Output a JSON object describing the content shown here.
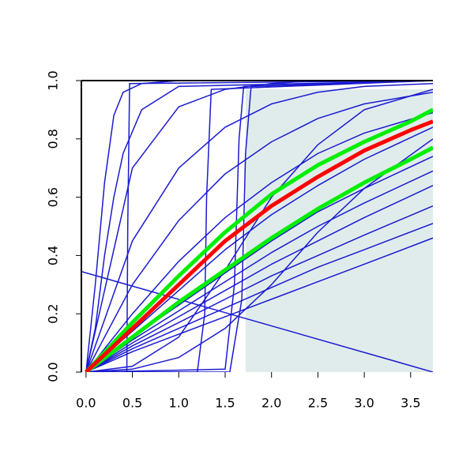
{
  "chart_data": {
    "type": "line",
    "xlim": [
      -0.05,
      3.74
    ],
    "ylim": [
      0,
      1
    ],
    "xticks": [
      {
        "value": 0,
        "label": "0.0"
      },
      0.5,
      {
        "value": 1,
        "label": "1.0"
      },
      1.5,
      {
        "value": 2,
        "label": "2.0"
      },
      2.5,
      {
        "value": 3,
        "label": "3.0"
      },
      3.5
    ],
    "yticks": [
      {
        "value": 0,
        "label": "0.0"
      },
      0.2,
      0.4,
      0.6,
      0.8,
      {
        "value": 1,
        "label": "1.0"
      }
    ],
    "shade": {
      "xlim": [
        1.72,
        3.74
      ],
      "ylim": [
        0,
        0.97
      ],
      "color": "#e0ecec"
    },
    "series": [
      {
        "color": "#1a1ad0",
        "width": 1.5,
        "x": [
          0,
          0.5,
          1,
          1.5,
          2,
          2.5,
          3,
          3.74
        ],
        "values": [
          0,
          0.14,
          0.28,
          0.42,
          0.54,
          0.64,
          0.73,
          0.84
        ]
      },
      {
        "color": "#1a1ad0",
        "width": 1.5,
        "x": [
          0,
          0.5,
          1,
          1.5,
          2,
          2.5,
          3,
          3.74
        ],
        "values": [
          0,
          0.12,
          0.23,
          0.34,
          0.45,
          0.55,
          0.63,
          0.74
        ]
      },
      {
        "color": "#1a1ad0",
        "width": 1.5,
        "x": [
          0,
          0.5,
          1,
          1.5,
          2,
          2.5,
          3,
          3.74
        ],
        "values": [
          0,
          0.11,
          0.21,
          0.31,
          0.41,
          0.5,
          0.58,
          0.69
        ]
      },
      {
        "color": "#1a1ad0",
        "width": 1.5,
        "x": [
          0,
          0.5,
          1,
          1.5,
          2,
          2.5,
          3,
          3.74
        ],
        "values": [
          0,
          0.1,
          0.19,
          0.28,
          0.37,
          0.45,
          0.53,
          0.64
        ]
      },
      {
        "color": "#1a1ad0",
        "width": 1.5,
        "x": [
          0,
          0.5,
          1,
          1.5,
          2,
          2.5,
          3,
          3.74
        ],
        "values": [
          0,
          0.09,
          0.17,
          0.25,
          0.33,
          0.4,
          0.47,
          0.57
        ]
      },
      {
        "color": "#1a1ad0",
        "width": 1.5,
        "x": [
          0,
          0.5,
          1,
          1.5,
          2,
          2.5,
          3,
          3.74
        ],
        "values": [
          0,
          0.08,
          0.15,
          0.22,
          0.29,
          0.36,
          0.42,
          0.51
        ]
      },
      {
        "color": "#1a1ad0",
        "width": 1.5,
        "x": [
          0,
          0.5,
          1,
          1.5,
          2,
          2.5,
          3,
          3.74
        ],
        "values": [
          0,
          0.07,
          0.13,
          0.19,
          0.25,
          0.31,
          0.37,
          0.46
        ]
      },
      {
        "color": "#1a1ad0",
        "width": 1.5,
        "x": [
          0,
          0.5,
          1,
          1.5,
          2,
          2.5,
          3,
          3.74
        ],
        "values": [
          0,
          0.2,
          0.38,
          0.53,
          0.65,
          0.75,
          0.82,
          0.89
        ]
      },
      {
        "color": "#1a1ad0",
        "width": 1.5,
        "x": [
          0,
          0.5,
          1,
          1.5,
          2,
          2.5,
          3,
          3.74
        ],
        "values": [
          0,
          0.3,
          0.52,
          0.68,
          0.79,
          0.87,
          0.92,
          0.96
        ]
      },
      {
        "color": "#1a1ad0",
        "width": 1.5,
        "x": [
          0,
          0.5,
          1,
          1.5,
          2,
          2.5,
          3,
          3.74
        ],
        "values": [
          0,
          0.45,
          0.7,
          0.84,
          0.92,
          0.96,
          0.98,
          0.99
        ]
      },
      {
        "color": "#1a1ad0",
        "width": 1.5,
        "x": [
          0,
          0.5,
          1,
          1.5,
          2,
          2.5,
          3,
          3.74
        ],
        "values": [
          0,
          0.7,
          0.91,
          0.97,
          0.99,
          1,
          1,
          1
        ]
      },
      {
        "color": "#1a1ad0",
        "width": 1.5,
        "x": [
          0,
          0.1,
          0.2,
          0.3,
          0.4,
          0.6,
          1,
          3.74
        ],
        "values": [
          0,
          0.3,
          0.65,
          0.88,
          0.96,
          0.99,
          1,
          1
        ]
      },
      {
        "color": "#1a1ad0",
        "width": 1.5,
        "x": [
          0,
          0.1,
          0.2,
          0.3,
          0.4,
          0.6,
          1,
          3.74
        ],
        "values": [
          0,
          0.15,
          0.4,
          0.6,
          0.75,
          0.9,
          0.98,
          1
        ]
      },
      {
        "color": "#1a1ad0",
        "width": 1.5,
        "x": [
          0,
          0.5,
          1,
          1.5,
          2,
          2.5,
          3,
          3.74
        ],
        "values": [
          0,
          0.02,
          0.12,
          0.35,
          0.6,
          0.78,
          0.9,
          0.97
        ]
      },
      {
        "color": "#1a1ad0",
        "width": 1.5,
        "x": [
          0,
          0.5,
          1,
          1.5,
          2,
          2.5,
          3,
          3.74
        ],
        "values": [
          0,
          0.01,
          0.05,
          0.15,
          0.3,
          0.48,
          0.63,
          0.8
        ]
      },
      {
        "color": "#1a1ad0",
        "width": 1.5,
        "x": [
          0,
          0.44,
          0.45,
          0.47,
          3.74
        ],
        "values": [
          0,
          0,
          0.5,
          0.99,
          1
        ]
      },
      {
        "color": "#1a1ad0",
        "width": 1.5,
        "x": [
          0,
          1.2,
          1.28,
          1.3,
          1.35,
          3.74
        ],
        "values": [
          0,
          0,
          0.2,
          0.6,
          0.97,
          1
        ]
      },
      {
        "color": "#1a1ad0",
        "width": 1.5,
        "x": [
          0,
          1.5,
          1.6,
          1.65,
          1.7,
          3.74
        ],
        "values": [
          0,
          0.01,
          0.3,
          0.8,
          0.98,
          1
        ]
      },
      {
        "color": "#1a1ad0",
        "width": 1.5,
        "x": [
          0,
          1.55,
          1.68,
          1.72,
          1.78,
          3.74
        ],
        "values": [
          0,
          0,
          0.25,
          0.75,
          0.98,
          1
        ]
      },
      {
        "color": "#1a1ad0",
        "width": 1.5,
        "x": [
          -0.05,
          3.74
        ],
        "values": [
          0.345,
          0
        ]
      },
      {
        "color": "#00ee00",
        "width": 5,
        "x": [
          0,
          0.5,
          1,
          1.5,
          2,
          2.5,
          3,
          3.5,
          3.74
        ],
        "values": [
          0,
          0.17,
          0.33,
          0.48,
          0.61,
          0.71,
          0.79,
          0.86,
          0.9
        ]
      },
      {
        "color": "#00ee00",
        "width": 5,
        "x": [
          0,
          0.5,
          1,
          1.5,
          2,
          2.5,
          3,
          3.5,
          3.74
        ],
        "values": [
          0,
          0.12,
          0.24,
          0.35,
          0.46,
          0.56,
          0.65,
          0.73,
          0.77
        ]
      },
      {
        "color": "#ff0000",
        "width": 5,
        "x": [
          0,
          0.5,
          1,
          1.5,
          2,
          2.5,
          3,
          3.5,
          3.74
        ],
        "values": [
          0,
          0.15,
          0.3,
          0.45,
          0.57,
          0.67,
          0.76,
          0.83,
          0.86
        ]
      }
    ]
  }
}
